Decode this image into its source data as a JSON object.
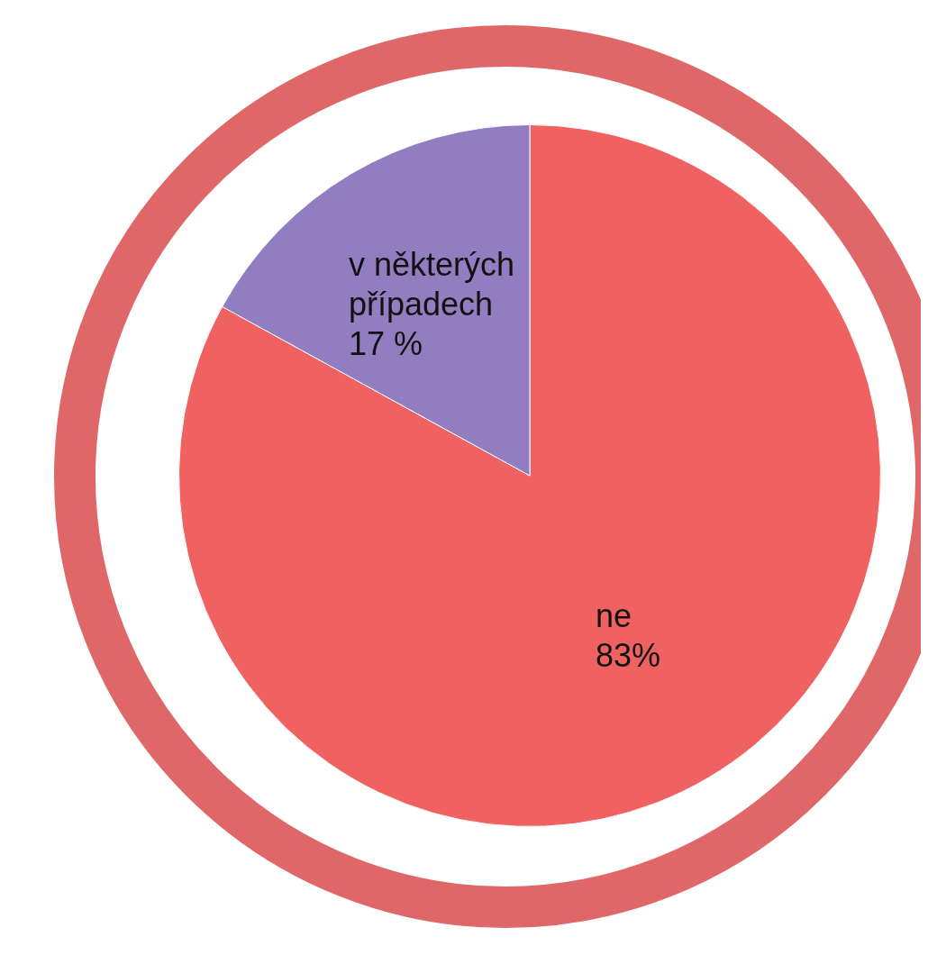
{
  "chart_data": {
    "type": "pie",
    "categories": [
      "ne",
      "v některých případech"
    ],
    "values": [
      83,
      17
    ],
    "colors": [
      "#f06262",
      "#917dbf"
    ],
    "value_labels": [
      "83%",
      "17 %"
    ]
  }
}
